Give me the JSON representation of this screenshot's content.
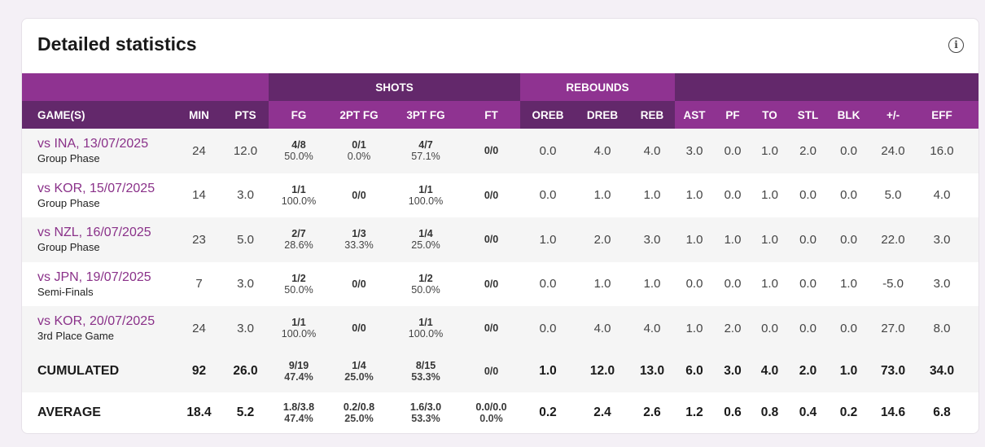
{
  "title": "Detailed statistics",
  "info_icon": "info-icon",
  "colors": {
    "light_purple": "#8f3391",
    "dark_purple": "#63286b",
    "link": "#8a3189"
  },
  "groups": {
    "shots": "SHOTS",
    "rebounds": "REBOUNDS"
  },
  "columns": [
    "GAME(S)",
    "MIN",
    "PTS",
    "FG",
    "2PT FG",
    "3PT FG",
    "FT",
    "OREB",
    "DREB",
    "REB",
    "AST",
    "PF",
    "TO",
    "STL",
    "BLK",
    "+/-",
    "EFF"
  ],
  "rows": [
    {
      "game": "vs INA, 13/07/2025",
      "phase": "Group Phase",
      "min": "24",
      "pts": "12.0",
      "fg": [
        "4/8",
        "50.0%"
      ],
      "fg2": [
        "0/1",
        "0.0%"
      ],
      "fg3": [
        "4/7",
        "57.1%"
      ],
      "ft": [
        "0/0",
        ""
      ],
      "rest": [
        "0.0",
        "4.0",
        "4.0",
        "3.0",
        "0.0",
        "1.0",
        "2.0",
        "0.0",
        "24.0",
        "16.0"
      ]
    },
    {
      "game": "vs KOR, 15/07/2025",
      "phase": "Group Phase",
      "min": "14",
      "pts": "3.0",
      "fg": [
        "1/1",
        "100.0%"
      ],
      "fg2": [
        "0/0",
        ""
      ],
      "fg3": [
        "1/1",
        "100.0%"
      ],
      "ft": [
        "0/0",
        ""
      ],
      "rest": [
        "0.0",
        "1.0",
        "1.0",
        "1.0",
        "0.0",
        "1.0",
        "0.0",
        "0.0",
        "5.0",
        "4.0"
      ]
    },
    {
      "game": "vs NZL, 16/07/2025",
      "phase": "Group Phase",
      "min": "23",
      "pts": "5.0",
      "fg": [
        "2/7",
        "28.6%"
      ],
      "fg2": [
        "1/3",
        "33.3%"
      ],
      "fg3": [
        "1/4",
        "25.0%"
      ],
      "ft": [
        "0/0",
        ""
      ],
      "rest": [
        "1.0",
        "2.0",
        "3.0",
        "1.0",
        "1.0",
        "1.0",
        "0.0",
        "0.0",
        "22.0",
        "3.0"
      ]
    },
    {
      "game": "vs JPN, 19/07/2025",
      "phase": "Semi-Finals",
      "min": "7",
      "pts": "3.0",
      "fg": [
        "1/2",
        "50.0%"
      ],
      "fg2": [
        "0/0",
        ""
      ],
      "fg3": [
        "1/2",
        "50.0%"
      ],
      "ft": [
        "0/0",
        ""
      ],
      "rest": [
        "0.0",
        "1.0",
        "1.0",
        "0.0",
        "0.0",
        "1.0",
        "0.0",
        "1.0",
        "-5.0",
        "3.0"
      ]
    },
    {
      "game": "vs KOR, 20/07/2025",
      "phase": "3rd Place Game",
      "min": "24",
      "pts": "3.0",
      "fg": [
        "1/1",
        "100.0%"
      ],
      "fg2": [
        "0/0",
        ""
      ],
      "fg3": [
        "1/1",
        "100.0%"
      ],
      "ft": [
        "0/0",
        ""
      ],
      "rest": [
        "0.0",
        "4.0",
        "4.0",
        "1.0",
        "2.0",
        "0.0",
        "0.0",
        "0.0",
        "27.0",
        "8.0"
      ]
    }
  ],
  "totals": [
    {
      "game": "CUMULATED",
      "min": "92",
      "pts": "26.0",
      "fg": [
        "9/19",
        "47.4%"
      ],
      "fg2": [
        "1/4",
        "25.0%"
      ],
      "fg3": [
        "8/15",
        "53.3%"
      ],
      "ft": [
        "0/0",
        ""
      ],
      "rest": [
        "1.0",
        "12.0",
        "13.0",
        "6.0",
        "3.0",
        "4.0",
        "2.0",
        "1.0",
        "73.0",
        "34.0"
      ]
    },
    {
      "game": "AVERAGE",
      "min": "18.4",
      "pts": "5.2",
      "fg": [
        "1.8/3.8",
        "47.4%"
      ],
      "fg2": [
        "0.2/0.8",
        "25.0%"
      ],
      "fg3": [
        "1.6/3.0",
        "53.3%"
      ],
      "ft": [
        "0.0/0.0",
        "0.0%"
      ],
      "rest": [
        "0.2",
        "2.4",
        "2.6",
        "1.2",
        "0.6",
        "0.8",
        "0.4",
        "0.2",
        "14.6",
        "6.8"
      ]
    }
  ]
}
